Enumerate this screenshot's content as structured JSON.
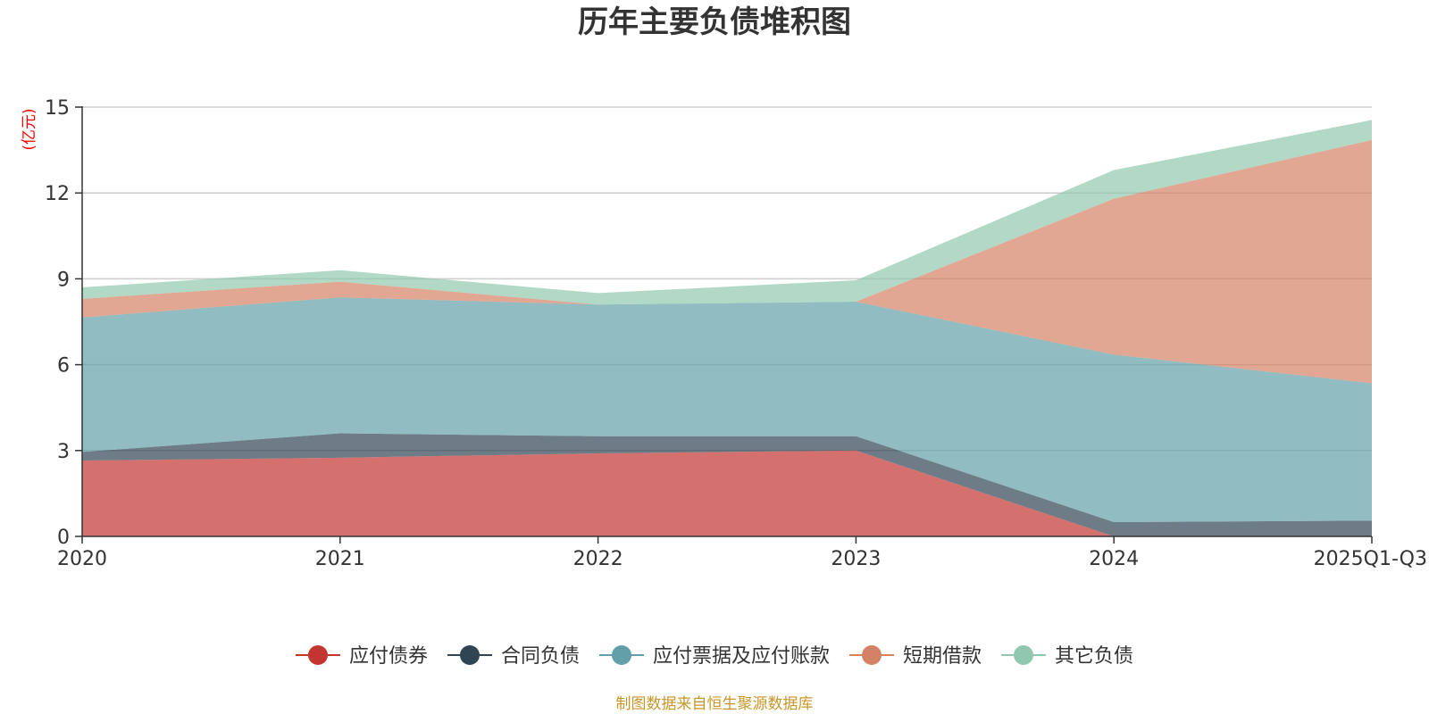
{
  "chart_data": {
    "type": "area",
    "stacked": true,
    "title": "历年主要负债堆积图",
    "ylabel": "(亿元)",
    "xlabel": "",
    "categories": [
      "2020",
      "2021",
      "2022",
      "2023",
      "2024",
      "2025Q1-Q3"
    ],
    "ylim": [
      0,
      15
    ],
    "yticks": [
      "0",
      "3",
      "6",
      "9",
      "12",
      "15"
    ],
    "grid": true,
    "legend_position": "bottom",
    "series": [
      {
        "name": "应付债券",
        "color": "#c23531",
        "values": [
          2.65,
          2.75,
          2.9,
          3.0,
          0.0,
          0.0
        ]
      },
      {
        "name": "合同负债",
        "color": "#2f4554",
        "values": [
          0.3,
          0.85,
          0.6,
          0.5,
          0.5,
          0.55
        ]
      },
      {
        "name": "应付票据及应付账款",
        "color": "#61a0a8",
        "values": [
          4.7,
          4.75,
          4.6,
          4.7,
          5.85,
          4.8
        ]
      },
      {
        "name": "短期借款",
        "color": "#d48265",
        "values": [
          0.65,
          0.55,
          0.0,
          0.0,
          5.45,
          8.5
        ]
      },
      {
        "name": "其它负债",
        "color": "#91c7ae",
        "values": [
          0.4,
          0.4,
          0.4,
          0.75,
          1.0,
          0.7
        ]
      }
    ],
    "source": "制图数据来自恒生聚源数据库"
  }
}
